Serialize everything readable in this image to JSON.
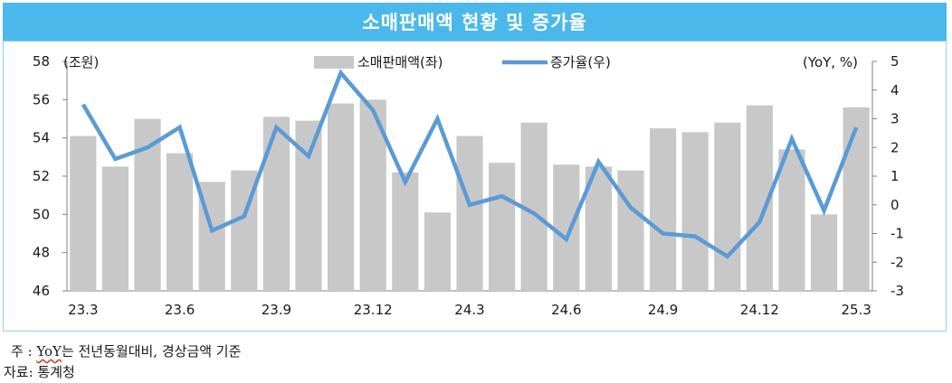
{
  "title": "소매판매액 현황 및 증가율",
  "chart_data": {
    "type": "bar+line",
    "left_axis_unit": "(조원)",
    "right_axis_unit": "(YoY, %)",
    "ylim_left": [
      46,
      58
    ],
    "yticks_left": [
      "46",
      "48",
      "50",
      "52",
      "54",
      "56",
      "58"
    ],
    "ylim_right": [
      -3,
      5
    ],
    "yticks_right": [
      "-3",
      "-2",
      "-1",
      "0",
      "1",
      "2",
      "3",
      "4",
      "5"
    ],
    "x_tick_labels": [
      "23.3",
      "23.6",
      "23.9",
      "23.12",
      "24.3",
      "24.6",
      "24.9",
      "24.12",
      "25.3"
    ],
    "categories": [
      "23.3",
      "23.4",
      "23.5",
      "23.6",
      "23.7",
      "23.8",
      "23.9",
      "23.10",
      "23.11",
      "23.12",
      "24.1",
      "24.2",
      "24.3",
      "24.4",
      "24.5",
      "24.6",
      "24.7",
      "24.8",
      "24.9",
      "24.10",
      "24.11",
      "24.12",
      "25.1",
      "25.2",
      "25.3"
    ],
    "series": [
      {
        "name": "소매판매액(좌)",
        "kind": "bar",
        "axis": "left",
        "color": "#c8c8c8",
        "values": [
          54.1,
          52.5,
          55.0,
          53.2,
          51.7,
          52.3,
          55.1,
          54.9,
          55.8,
          56.0,
          52.2,
          50.1,
          54.1,
          52.7,
          54.8,
          52.6,
          52.5,
          52.3,
          54.5,
          54.3,
          54.8,
          55.7,
          53.4,
          50.0,
          55.6
        ]
      },
      {
        "name": "증가율(우)",
        "kind": "line",
        "axis": "right",
        "color": "#5a9bd5",
        "values": [
          3.5,
          1.6,
          2.0,
          2.7,
          -0.9,
          -0.4,
          2.7,
          1.7,
          4.6,
          3.3,
          0.8,
          3.0,
          0.0,
          0.3,
          -0.3,
          -1.2,
          1.5,
          -0.1,
          -1.0,
          -1.1,
          -1.8,
          -0.6,
          2.3,
          -0.2,
          2.7
        ]
      }
    ],
    "legend_position": "top-center",
    "grid": false
  },
  "footnote": {
    "prefix": "주 : ",
    "yoy": "YoY",
    "rest": "는 전년동월대비, 경상금액 기준"
  },
  "source": "자료: 통계청"
}
